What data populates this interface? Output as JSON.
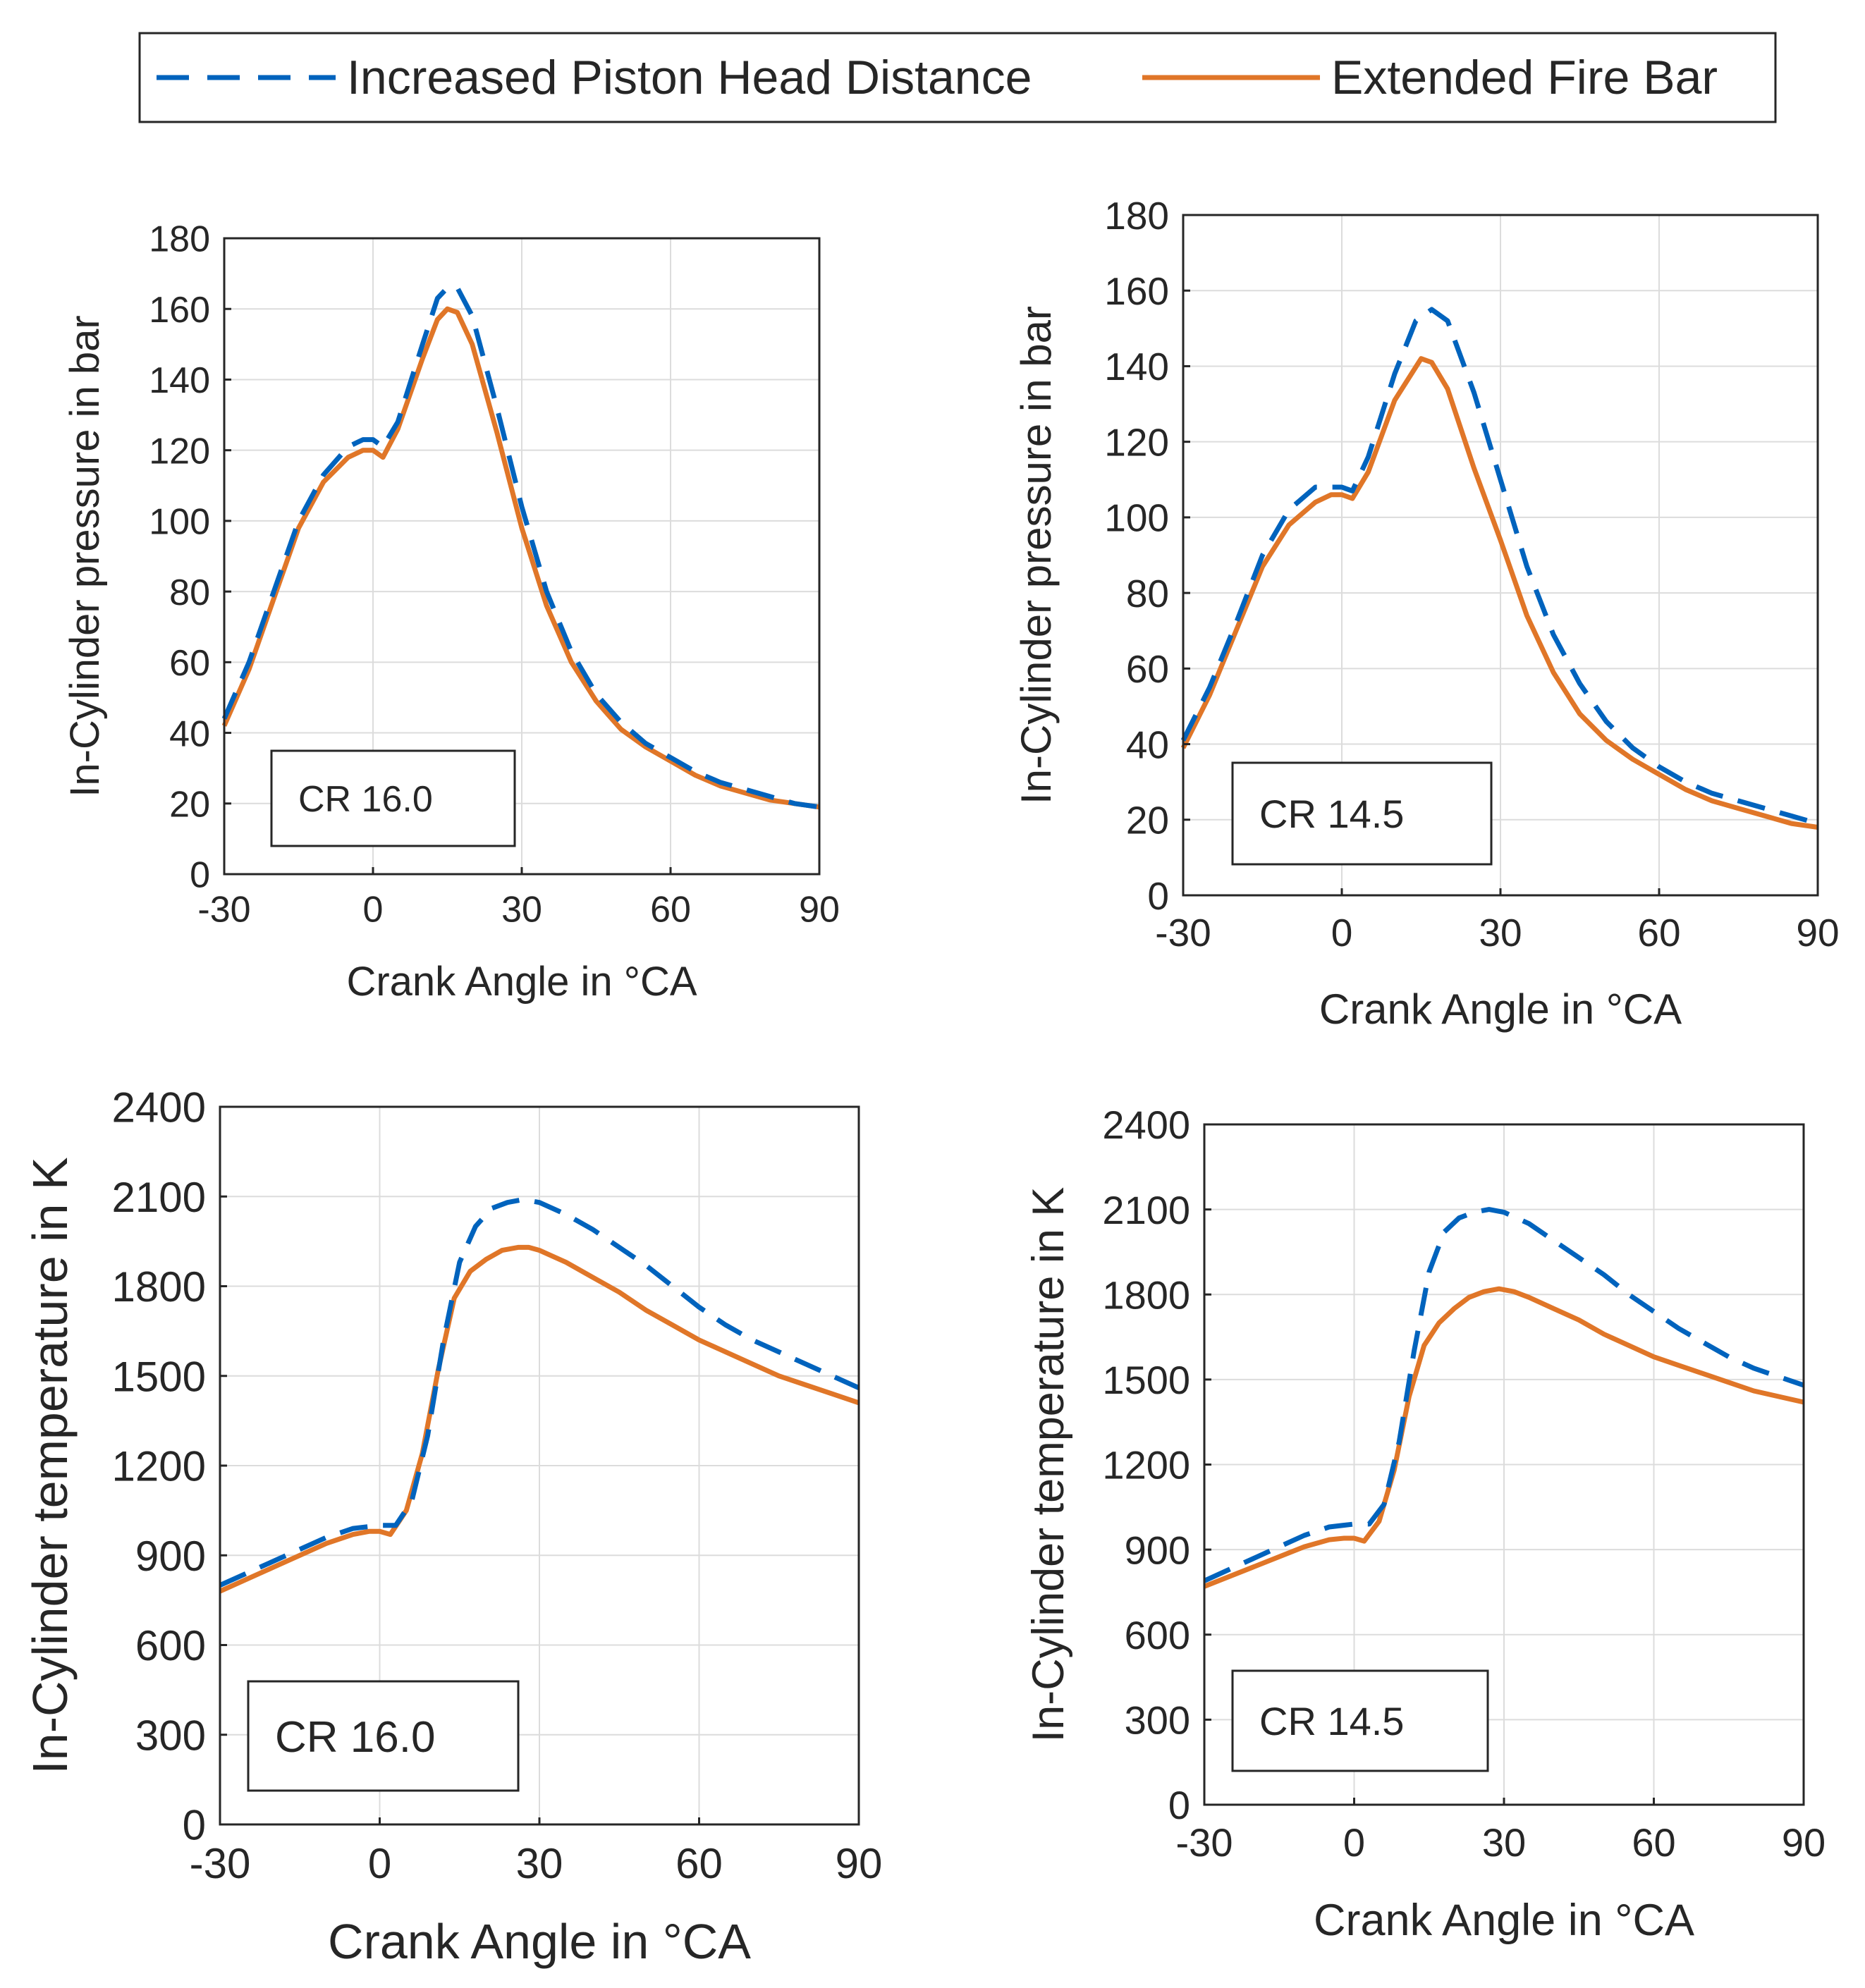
{
  "legend": {
    "entries": [
      {
        "label": "Increased Piston Head Distance",
        "color": "#0063bd",
        "style": "dashed"
      },
      {
        "label": "Extended Fire Bar",
        "color": "#e07628",
        "style": "solid"
      }
    ]
  },
  "chart_data": [
    {
      "type": "line",
      "panel": "top-left",
      "annotation": "CR 16.0",
      "xlabel": "Crank Angle in °CA",
      "ylabel": "In-Cylinder pressure in bar",
      "xlim": [
        -30,
        90
      ],
      "ylim": [
        0,
        180
      ],
      "xticks": [
        "-30",
        "0",
        "30",
        "60",
        "90"
      ],
      "yticks": [
        "0",
        "20",
        "40",
        "60",
        "80",
        "100",
        "120",
        "140",
        "160",
        "180"
      ],
      "grid": true,
      "series": [
        {
          "name": "Increased Piston Head Distance",
          "x": [
            -30,
            -25,
            -20,
            -15,
            -10,
            -5,
            -2,
            0,
            2,
            5,
            10,
            13,
            15,
            17,
            20,
            25,
            30,
            35,
            40,
            45,
            50,
            55,
            60,
            65,
            70,
            75,
            80,
            85,
            90
          ],
          "y": [
            44,
            60,
            80,
            100,
            113,
            121,
            123,
            123,
            121,
            128,
            150,
            163,
            166,
            166,
            158,
            132,
            104,
            80,
            63,
            51,
            43,
            37,
            33,
            29,
            26,
            24,
            22,
            20,
            19
          ]
        },
        {
          "name": "Extended Fire Bar",
          "x": [
            -30,
            -25,
            -20,
            -15,
            -10,
            -5,
            -2,
            0,
            2,
            5,
            10,
            13,
            15,
            17,
            20,
            25,
            30,
            35,
            40,
            45,
            50,
            55,
            60,
            65,
            70,
            75,
            80,
            85,
            90
          ],
          "y": [
            42,
            58,
            78,
            98,
            111,
            118,
            120,
            120,
            118,
            126,
            146,
            157,
            160,
            159,
            150,
            125,
            98,
            76,
            60,
            49,
            41,
            36,
            32,
            28,
            25,
            23,
            21,
            20,
            19
          ]
        }
      ]
    },
    {
      "type": "line",
      "panel": "top-right",
      "annotation": "CR 14.5",
      "xlabel": "Crank Angle in °CA",
      "ylabel": "In-Cylinder pressure in bar",
      "xlim": [
        -30,
        90
      ],
      "ylim": [
        0,
        180
      ],
      "xticks": [
        "-30",
        "0",
        "30",
        "60",
        "90"
      ],
      "yticks": [
        "0",
        "20",
        "40",
        "60",
        "80",
        "100",
        "120",
        "140",
        "160",
        "180"
      ],
      "grid": true,
      "series": [
        {
          "name": "Increased Piston Head Distance",
          "x": [
            -30,
            -25,
            -20,
            -15,
            -10,
            -5,
            -2,
            0,
            2,
            5,
            10,
            14,
            17,
            20,
            25,
            30,
            35,
            40,
            45,
            50,
            55,
            60,
            65,
            70,
            75,
            80,
            85,
            90
          ],
          "y": [
            41,
            55,
            72,
            90,
            102,
            108,
            108,
            108,
            107,
            116,
            138,
            152,
            155,
            152,
            133,
            110,
            87,
            69,
            56,
            46,
            39,
            34,
            30,
            27,
            25,
            23,
            21,
            19
          ]
        },
        {
          "name": "Extended Fire Bar",
          "x": [
            -30,
            -25,
            -20,
            -15,
            -10,
            -5,
            -2,
            0,
            2,
            5,
            10,
            15,
            17,
            20,
            25,
            30,
            35,
            40,
            45,
            50,
            55,
            60,
            65,
            70,
            75,
            80,
            85,
            90
          ],
          "y": [
            39,
            53,
            70,
            87,
            98,
            104,
            106,
            106,
            105,
            112,
            131,
            142,
            141,
            134,
            113,
            94,
            74,
            59,
            48,
            41,
            36,
            32,
            28,
            25,
            23,
            21,
            19,
            18
          ]
        }
      ]
    },
    {
      "type": "line",
      "panel": "bottom-left",
      "annotation": "CR 16.0",
      "xlabel": "Crank Angle in °CA",
      "ylabel": "In-Cylinder temperature in K",
      "xlim": [
        -30,
        90
      ],
      "ylim": [
        0,
        2400
      ],
      "xticks": [
        "-30",
        "0",
        "30",
        "60",
        "90"
      ],
      "yticks": [
        "0",
        "300",
        "600",
        "900",
        "1200",
        "1500",
        "1800",
        "2100",
        "2400"
      ],
      "grid": true,
      "series": [
        {
          "name": "Increased Piston Head Distance",
          "x": [
            -30,
            -20,
            -10,
            -5,
            0,
            3,
            6,
            9,
            12,
            15,
            18,
            21,
            24,
            27,
            30,
            35,
            40,
            45,
            50,
            55,
            60,
            65,
            70,
            75,
            80,
            85,
            90
          ],
          "y": [
            800,
            880,
            960,
            990,
            1000,
            1000,
            1080,
            1300,
            1620,
            1880,
            2000,
            2060,
            2080,
            2090,
            2080,
            2040,
            1990,
            1930,
            1870,
            1800,
            1730,
            1670,
            1620,
            1580,
            1540,
            1500,
            1460
          ]
        },
        {
          "name": "Extended Fire Bar",
          "x": [
            -30,
            -20,
            -10,
            -5,
            -2,
            0,
            2,
            5,
            8,
            11,
            14,
            17,
            20,
            23,
            26,
            28,
            30,
            35,
            40,
            45,
            50,
            55,
            60,
            65,
            70,
            75,
            80,
            85,
            90
          ],
          "y": [
            780,
            860,
            940,
            970,
            980,
            980,
            970,
            1050,
            1240,
            1520,
            1760,
            1850,
            1890,
            1920,
            1930,
            1930,
            1920,
            1880,
            1830,
            1780,
            1720,
            1670,
            1620,
            1580,
            1540,
            1500,
            1470,
            1440,
            1410
          ]
        }
      ]
    },
    {
      "type": "line",
      "panel": "bottom-right",
      "annotation": "CR 14.5",
      "xlabel": "Crank Angle in °CA",
      "ylabel": "In-Cylinder temperature in K",
      "xlim": [
        -30,
        90
      ],
      "ylim": [
        0,
        2400
      ],
      "xticks": [
        "-30",
        "0",
        "30",
        "60",
        "90"
      ],
      "yticks": [
        "0",
        "300",
        "600",
        "900",
        "1200",
        "1500",
        "1800",
        "2100",
        "2400"
      ],
      "grid": true,
      "series": [
        {
          "name": "Increased Piston Head Distance",
          "x": [
            -30,
            -20,
            -10,
            -5,
            0,
            3,
            6,
            9,
            12,
            15,
            18,
            21,
            24,
            27,
            30,
            35,
            40,
            45,
            50,
            55,
            60,
            65,
            70,
            75,
            80,
            85,
            90
          ],
          "y": [
            790,
            870,
            950,
            980,
            990,
            990,
            1060,
            1280,
            1600,
            1880,
            2020,
            2070,
            2090,
            2100,
            2090,
            2050,
            1990,
            1930,
            1870,
            1800,
            1740,
            1680,
            1630,
            1580,
            1540,
            1510,
            1480
          ]
        },
        {
          "name": "Extended Fire Bar",
          "x": [
            -30,
            -20,
            -10,
            -5,
            -2,
            0,
            2,
            5,
            8,
            11,
            14,
            17,
            20,
            23,
            26,
            29,
            32,
            35,
            40,
            45,
            50,
            55,
            60,
            65,
            70,
            75,
            80,
            85,
            90
          ],
          "y": [
            770,
            840,
            910,
            935,
            940,
            940,
            930,
            1000,
            1180,
            1440,
            1620,
            1700,
            1750,
            1790,
            1810,
            1820,
            1810,
            1790,
            1750,
            1710,
            1660,
            1620,
            1580,
            1550,
            1520,
            1490,
            1460,
            1440,
            1420
          ]
        }
      ]
    }
  ]
}
